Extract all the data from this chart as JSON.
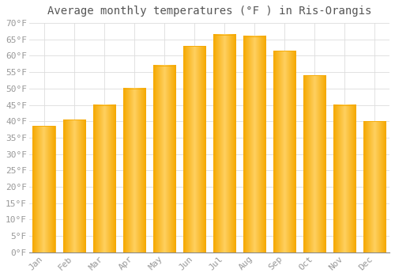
{
  "title": "Average monthly temperatures (°F ) in Ris-Orangis",
  "months": [
    "Jan",
    "Feb",
    "Mar",
    "Apr",
    "May",
    "Jun",
    "Jul",
    "Aug",
    "Sep",
    "Oct",
    "Nov",
    "Dec"
  ],
  "values": [
    38.5,
    40.5,
    45.0,
    50.0,
    57.0,
    63.0,
    66.5,
    66.0,
    61.5,
    54.0,
    45.0,
    40.0
  ],
  "bar_color_center": "#FFD060",
  "bar_color_edge": "#F5A800",
  "background_color": "#FFFFFF",
  "grid_color": "#DDDDDD",
  "tick_label_color": "#999999",
  "title_color": "#555555",
  "ylim": [
    0,
    70
  ],
  "ytick_step": 5,
  "title_fontsize": 10,
  "tick_fontsize": 8
}
